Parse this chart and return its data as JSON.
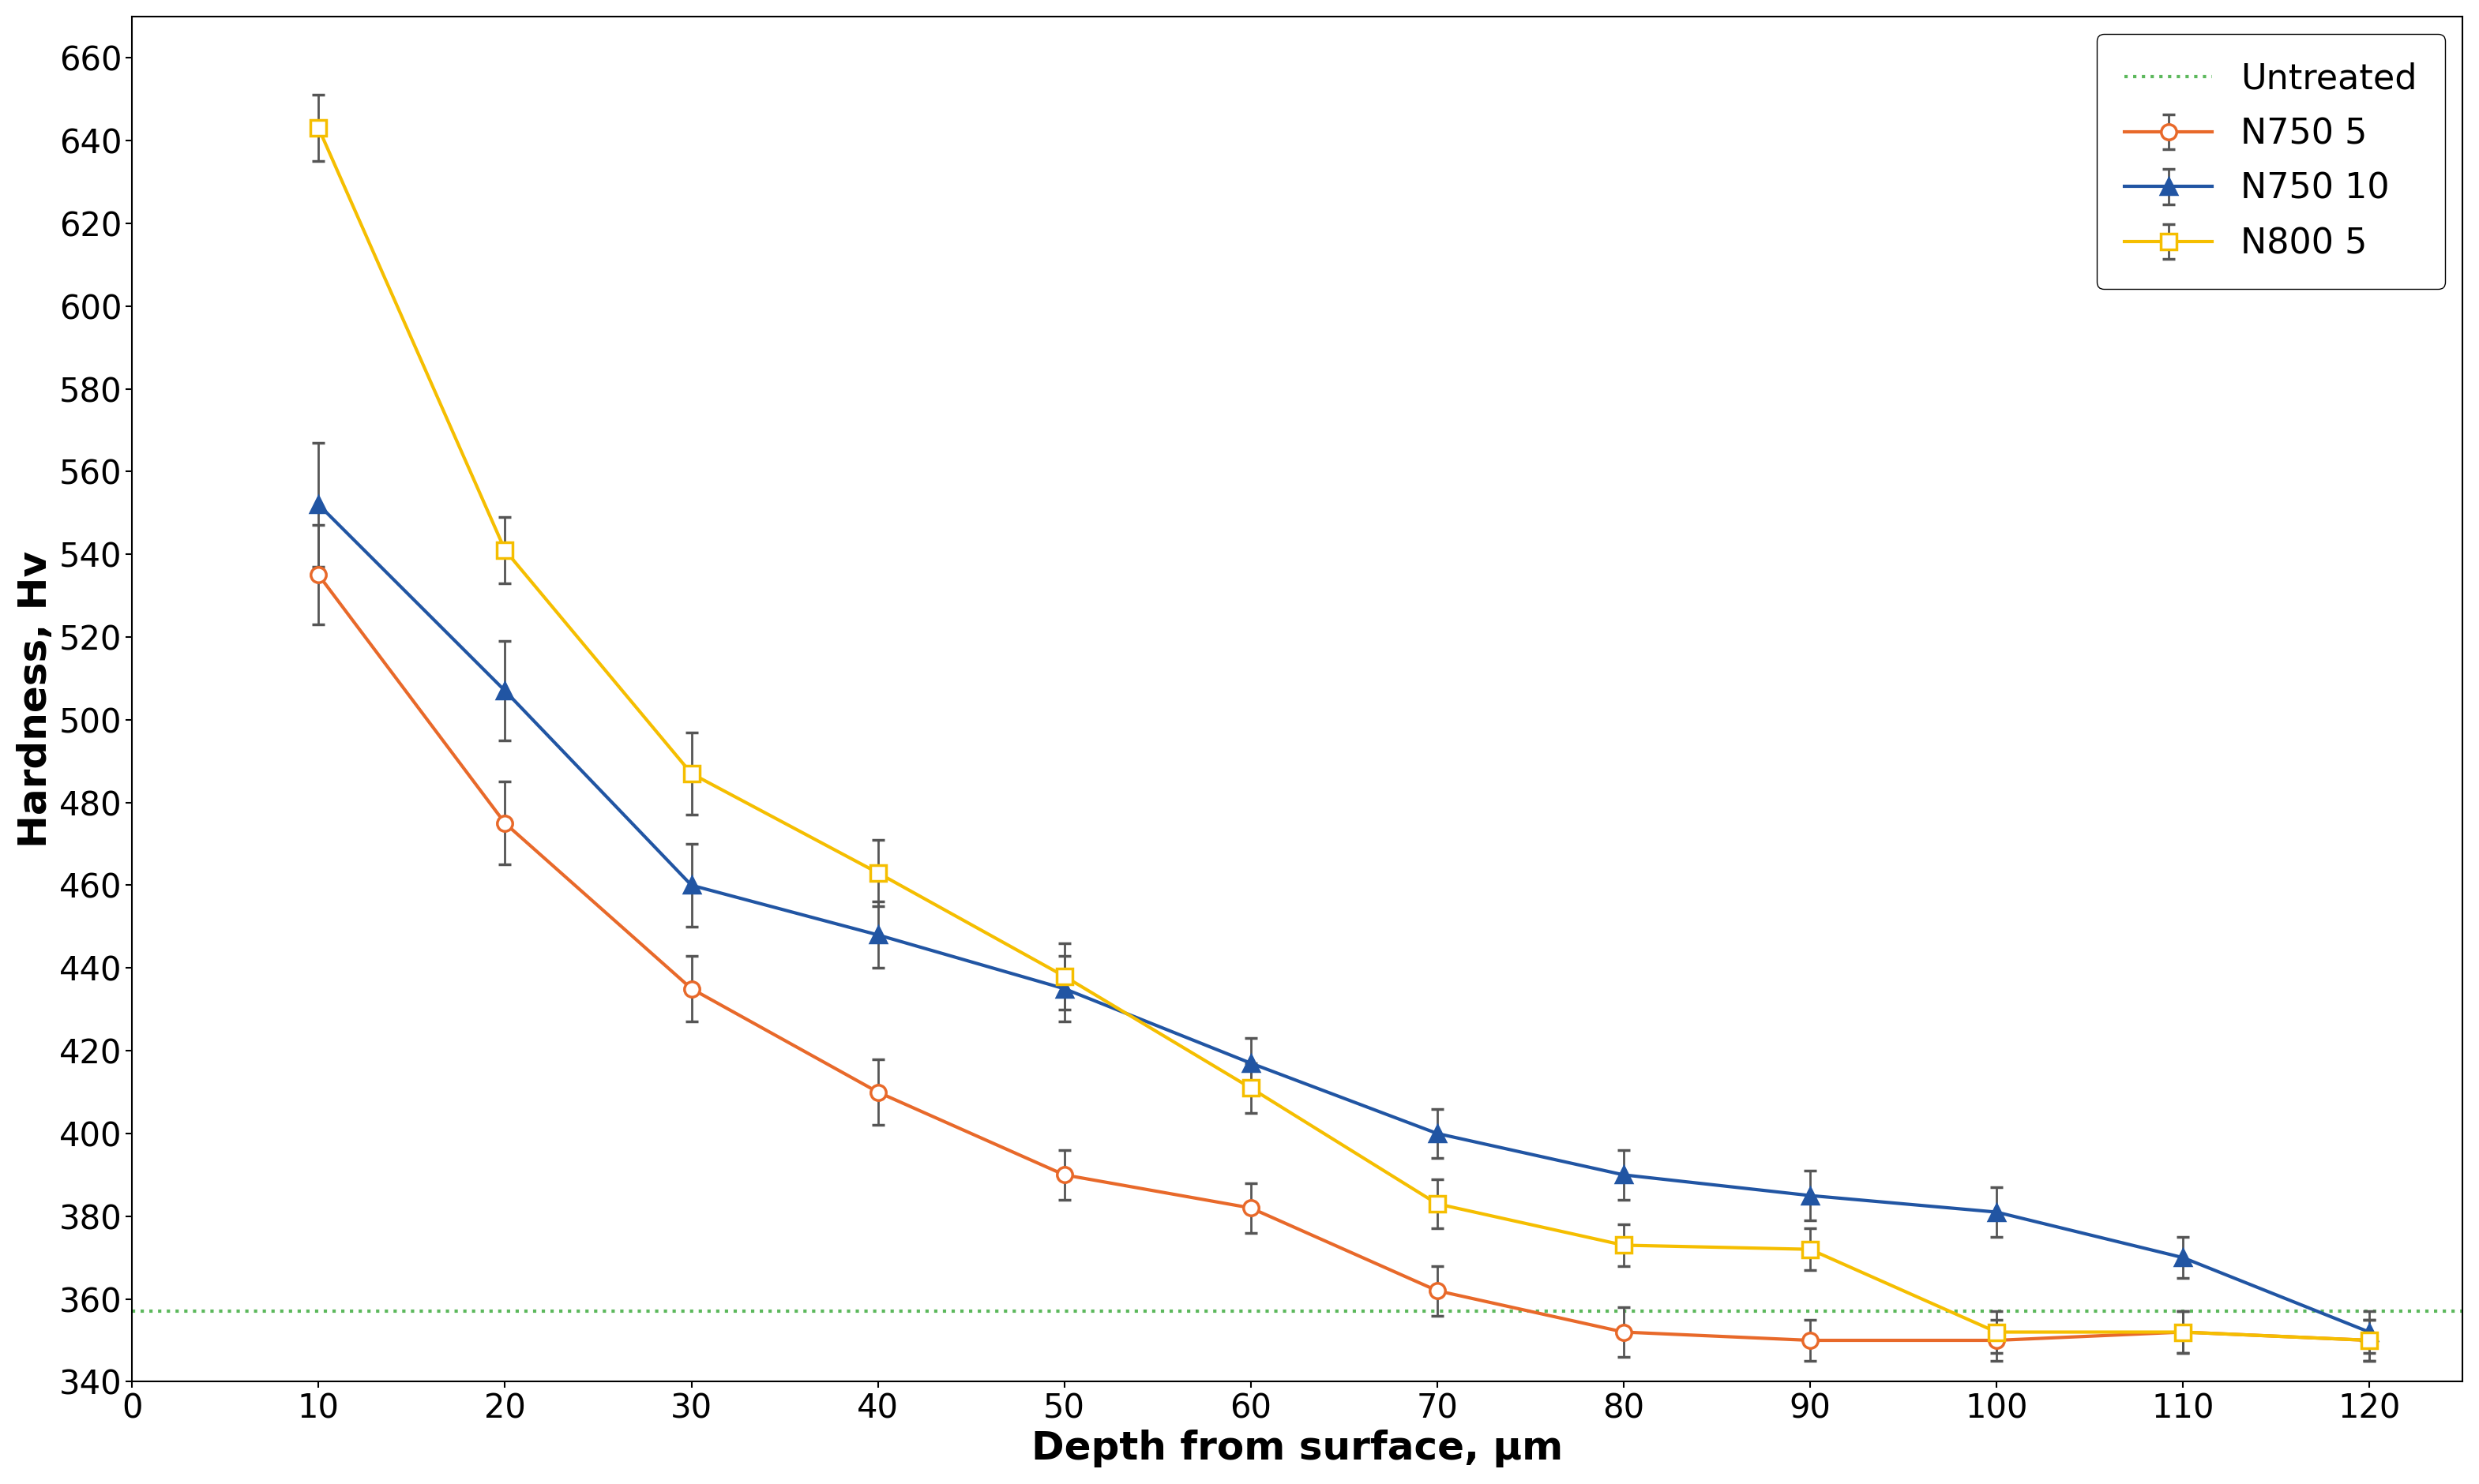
{
  "x": [
    10,
    20,
    30,
    40,
    50,
    60,
    70,
    80,
    90,
    100,
    110,
    120
  ],
  "n750_5_y": [
    535,
    475,
    435,
    410,
    390,
    382,
    362,
    352,
    350,
    350,
    352,
    350
  ],
  "n750_5_err": [
    12,
    10,
    8,
    8,
    6,
    6,
    6,
    6,
    5,
    5,
    5,
    5
  ],
  "n750_10_y": [
    552,
    507,
    460,
    448,
    435,
    417,
    400,
    390,
    385,
    381,
    370,
    352
  ],
  "n750_10_err": [
    15,
    12,
    10,
    8,
    8,
    6,
    6,
    6,
    6,
    6,
    5,
    5
  ],
  "n800_5_y": [
    643,
    541,
    487,
    463,
    438,
    411,
    383,
    373,
    372,
    352,
    352,
    350
  ],
  "n800_5_err": [
    8,
    8,
    10,
    8,
    8,
    6,
    6,
    5,
    5,
    5,
    5,
    5
  ],
  "untreated_y": 357,
  "colors": {
    "n750_5": "#E8692A",
    "n750_10": "#2155A3",
    "n800_5": "#F5BE00",
    "untreated": "#5CB85C"
  },
  "xlabel": "Depth from surface, μm",
  "ylabel": "Hardness, Hv",
  "xlim": [
    0,
    125
  ],
  "ylim": [
    340,
    670
  ],
  "yticks": [
    340,
    360,
    380,
    400,
    420,
    440,
    460,
    480,
    500,
    520,
    540,
    560,
    580,
    600,
    620,
    640,
    660
  ],
  "xticks": [
    0,
    10,
    20,
    30,
    40,
    50,
    60,
    70,
    80,
    90,
    100,
    110,
    120
  ],
  "legend_labels": [
    "Untreated",
    "N750 5",
    "N750 10",
    "N800 5"
  ],
  "linewidth": 3.0,
  "markersize": 14,
  "capsize": 6,
  "elinewidth": 2.0,
  "capthick": 2.0,
  "fontsize_labels": 36,
  "fontsize_ticks": 30,
  "fontsize_legend": 32
}
